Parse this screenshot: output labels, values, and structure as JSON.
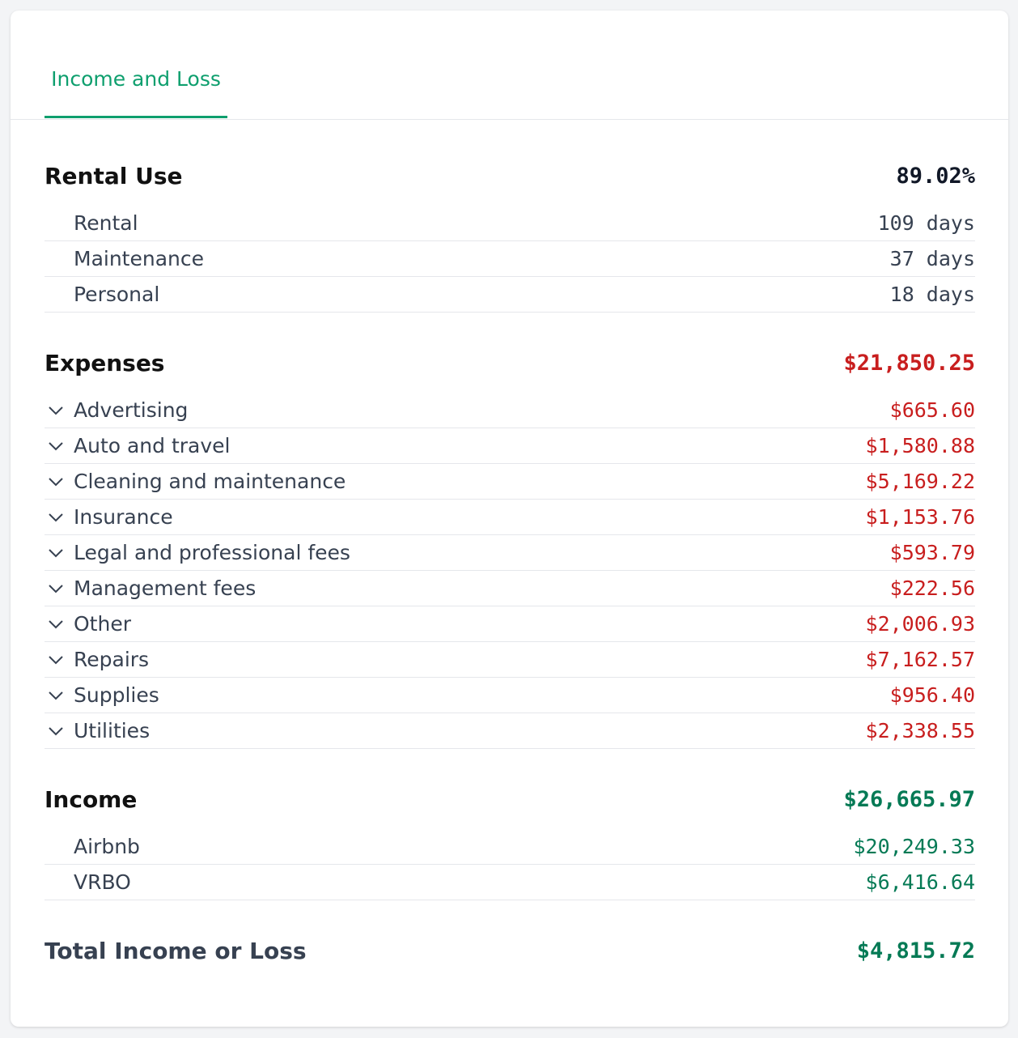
{
  "tab": {
    "label": "Income and Loss"
  },
  "sections": [
    {
      "title": "Rental Use",
      "total": "89.02%",
      "color": "#111827",
      "expandable": false,
      "rows": [
        {
          "label": "Rental",
          "value": "109 days"
        },
        {
          "label": "Maintenance",
          "value": "37 days"
        },
        {
          "label": "Personal",
          "value": "18 days"
        }
      ]
    },
    {
      "title": "Expenses",
      "total": "$21,850.25",
      "color": "#c81e1e",
      "expandable": true,
      "rows": [
        {
          "label": "Advertising",
          "value": "$665.60"
        },
        {
          "label": "Auto and travel",
          "value": "$1,580.88"
        },
        {
          "label": "Cleaning and maintenance",
          "value": "$5,169.22"
        },
        {
          "label": "Insurance",
          "value": "$1,153.76"
        },
        {
          "label": "Legal and professional fees",
          "value": "$593.79"
        },
        {
          "label": "Management fees",
          "value": "$222.56"
        },
        {
          "label": "Other",
          "value": "$2,006.93"
        },
        {
          "label": "Repairs",
          "value": "$7,162.57"
        },
        {
          "label": "Supplies",
          "value": "$956.40"
        },
        {
          "label": "Utilities",
          "value": "$2,338.55"
        }
      ]
    },
    {
      "title": "Income",
      "total": "$26,665.97",
      "color": "#057a55",
      "expandable": false,
      "rows": [
        {
          "label": "Airbnb",
          "value": "$20,249.33"
        },
        {
          "label": "VRBO",
          "value": "$6,416.64"
        }
      ]
    }
  ],
  "summary": {
    "title": "Total Income or Loss",
    "total": "$4,815.72",
    "color": "#057a55"
  }
}
